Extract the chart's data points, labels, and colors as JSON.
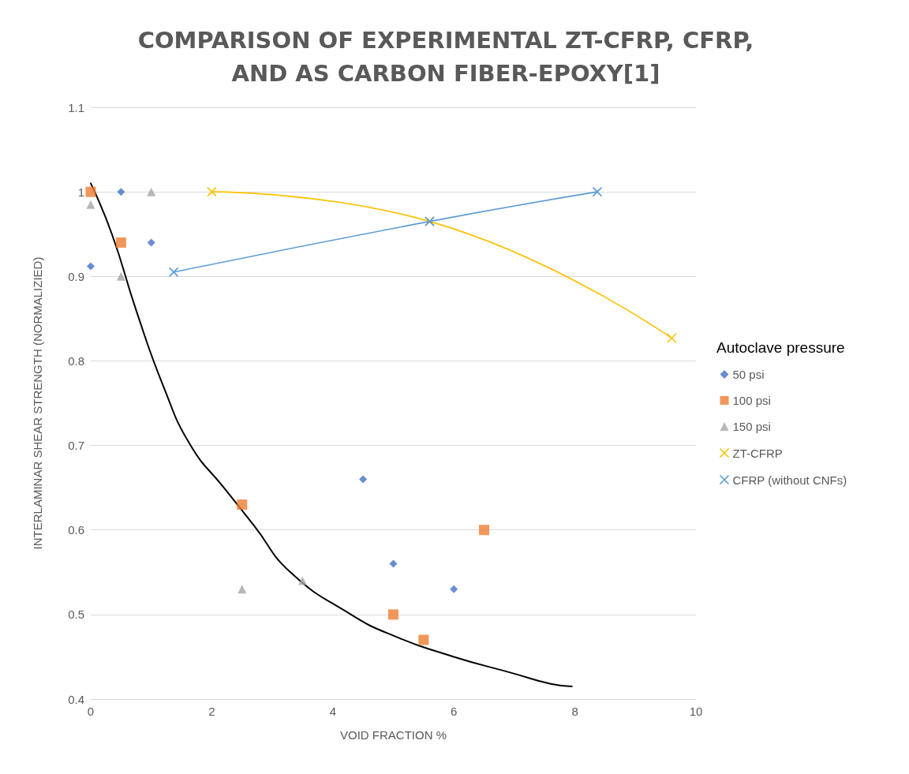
{
  "chart_data": {
    "type": "scatter",
    "title": "COMPARISON OF EXPERIMENTAL ZT-CFRP, CFRP,\nAND AS CARBON FIBER-EPOXY[1]",
    "xlabel": "VOID FRACTION %",
    "ylabel": "INTERLAMINAR SHEAR STRENGTH (NORMALIZIED)",
    "legend_title": "Autoclave pressure",
    "xlim": [
      0,
      10
    ],
    "xticks": [
      0,
      2,
      4,
      6,
      8,
      10
    ],
    "ylim": [
      0.4,
      1.1
    ],
    "yticks": [
      0.4,
      0.5,
      0.6,
      0.7,
      0.8,
      0.9,
      1,
      1.1
    ],
    "grid": "y",
    "legend": "right",
    "series": [
      {
        "name": "50 psi",
        "marker": "diamond",
        "color": "#4472c4",
        "x": [
          0,
          0.5,
          1,
          4.5,
          5,
          6
        ],
        "values": [
          0.912,
          1.0,
          0.94,
          0.66,
          0.56,
          0.53
        ]
      },
      {
        "name": "100 psi",
        "marker": "square",
        "color": "#ed7d31",
        "x": [
          0,
          0.5,
          2.5,
          5,
          5.5,
          6.5
        ],
        "values": [
          1.0,
          0.94,
          0.63,
          0.5,
          0.47,
          0.6
        ]
      },
      {
        "name": "150 psi",
        "marker": "triangle",
        "color": "#a5a5a5",
        "x": [
          0,
          0.5,
          1,
          2.5,
          3.5
        ],
        "values": [
          0.985,
          0.9,
          1.0,
          0.53,
          0.54
        ]
      },
      {
        "name": "ZT-CFRP",
        "type": "line",
        "marker": "cross",
        "color": "#ffc000",
        "x": [
          2,
          5.6,
          9.6
        ],
        "values": [
          1.0,
          0.965,
          0.827
        ]
      },
      {
        "name": "CFRP (without CNFs)",
        "type": "line",
        "marker": "cross",
        "color": "#5b9bd5",
        "x": [
          1.37,
          5.6,
          8.37
        ],
        "values": [
          0.905,
          0.965,
          1.0
        ]
      },
      {
        "type": "line",
        "marker": "none",
        "color": "#000000",
        "x": [
          0,
          0.35,
          0.75,
          1.2,
          1.65,
          2.2,
          2.7,
          3.3,
          4.3,
          5,
          6,
          7,
          7.6,
          7.95
        ],
        "values": [
          1.01,
          0.95,
          0.86,
          0.77,
          0.7,
          0.65,
          0.605,
          0.55,
          0.5,
          0.475,
          0.45,
          0.43,
          0.418,
          0.415
        ]
      }
    ]
  }
}
